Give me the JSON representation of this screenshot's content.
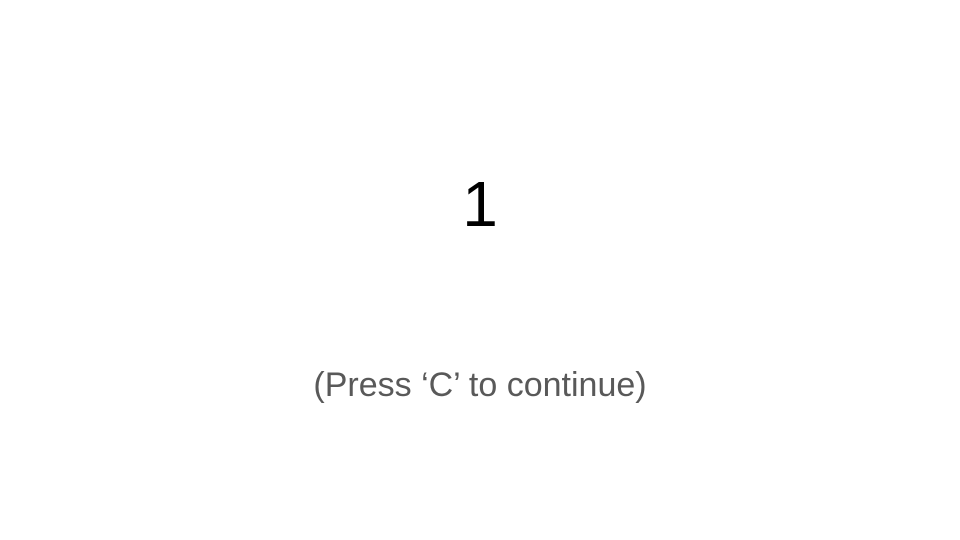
{
  "slide": {
    "number": "1",
    "hint": "(Press ‘C’ to continue)"
  },
  "colors": {
    "background": "#ffffff",
    "number": "#000000",
    "hint": "#595959"
  }
}
